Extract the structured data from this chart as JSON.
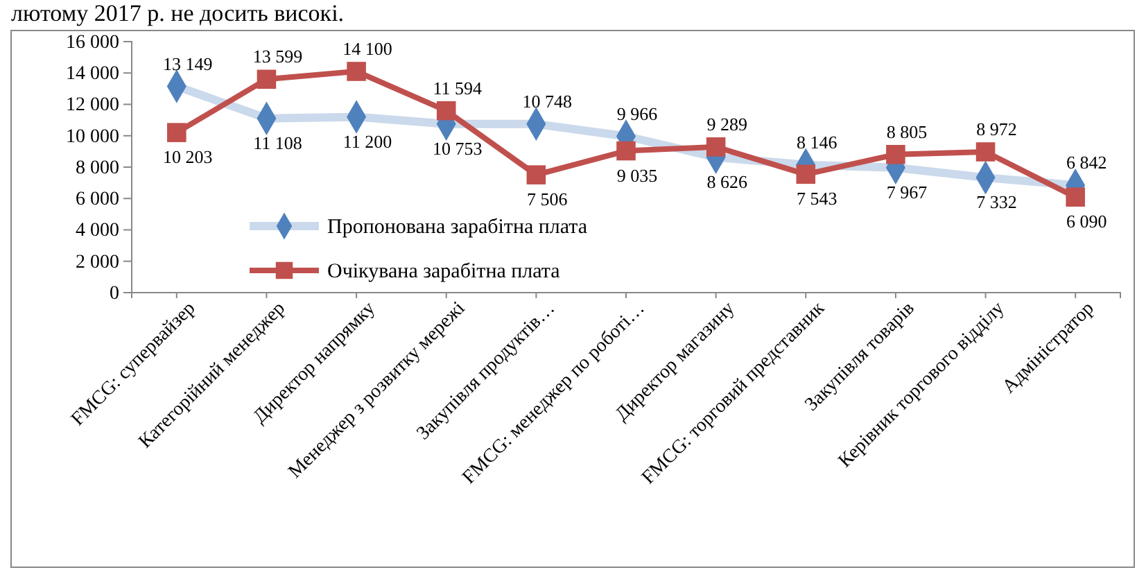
{
  "chart_data": {
    "type": "line",
    "annotations": [
      "лютому 2017 р. не досить високі."
    ],
    "categories": [
      "FMCG: супервайзер",
      "Категорійний менеджер",
      "Директор напрямку",
      "Менеджер з розвитку мережі",
      "Закупівля продуктів…",
      "FMCG: менеджер по роботі…",
      "Директор магазину",
      "FMCG: торговий представник",
      "Закупівля товарів",
      "Керівник торгового відділу",
      "Адміністратор"
    ],
    "series": [
      {
        "name": "Пропонована зарабітна плата",
        "color": "#4f81bd",
        "marker": "diamond",
        "values": [
          13149,
          11108,
          11200,
          10753,
          10748,
          9966,
          8626,
          8146,
          7967,
          7332,
          6842
        ],
        "value_labels": [
          "13 149",
          "11 108",
          "11 200",
          "10 753",
          "10 748",
          "9 966",
          "8 626",
          "8 146",
          "7 967",
          "7 332",
          "6 842"
        ]
      },
      {
        "name": "Очікувана зарабітна плата",
        "color": "#c0504d",
        "marker": "square",
        "values": [
          10203,
          13599,
          14100,
          11594,
          7506,
          9035,
          9289,
          7543,
          8805,
          8972,
          6090
        ],
        "value_labels": [
          "10 203",
          "13 599",
          "14 100",
          "11 594",
          "7 506",
          "9 035",
          "9 289",
          "7 543",
          "8 805",
          "8 972",
          "6 090"
        ]
      }
    ],
    "ylim": [
      0,
      16000
    ],
    "yticks": [
      {
        "value": 0,
        "label": "0"
      },
      {
        "value": 2000,
        "label": "2 000"
      },
      {
        "value": 4000,
        "label": "4 000"
      },
      {
        "value": 6000,
        "label": "6 000"
      },
      {
        "value": 8000,
        "label": "8 000"
      },
      {
        "value": 10000,
        "label": "10 000"
      },
      {
        "value": 12000,
        "label": "12 000"
      },
      {
        "value": 14000,
        "label": "14 000"
      },
      {
        "value": 16000,
        "label": "16 000"
      }
    ],
    "legend": "bottom left"
  }
}
